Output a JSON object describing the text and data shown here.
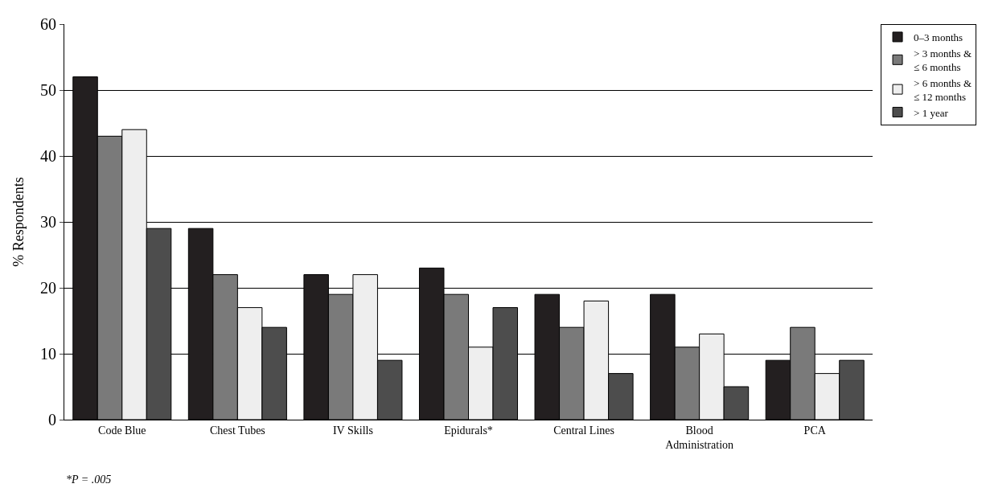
{
  "chart_data": {
    "type": "bar",
    "ylabel": "% Respondents",
    "categories": [
      "Code Blue",
      "Chest Tubes",
      "IV Skills",
      "Epidurals*",
      "Central Lines",
      "Blood Administration",
      "PCA"
    ],
    "series": [
      {
        "name": "0–3 months",
        "color": "#231f20",
        "values": [
          52,
          29,
          22,
          23,
          19,
          19,
          9
        ]
      },
      {
        "name": "> 3 months & ≤ 6 months",
        "color": "#7a7a7a",
        "values": [
          43,
          22,
          19,
          19,
          14,
          11,
          14
        ]
      },
      {
        "name": "> 6 months & ≤ 12 months",
        "color": "#eeeeee",
        "values": [
          44,
          17,
          22,
          11,
          18,
          13,
          7
        ]
      },
      {
        "name": "> 1 year",
        "color": "#4d4d4d",
        "values": [
          29,
          14,
          9,
          17,
          7,
          5,
          9
        ]
      }
    ],
    "ylim": [
      0,
      60
    ],
    "yticks": [
      0,
      10,
      20,
      30,
      40,
      50,
      60
    ],
    "grid": "y",
    "legend": "right",
    "annotations": [
      "*P = .005"
    ]
  }
}
